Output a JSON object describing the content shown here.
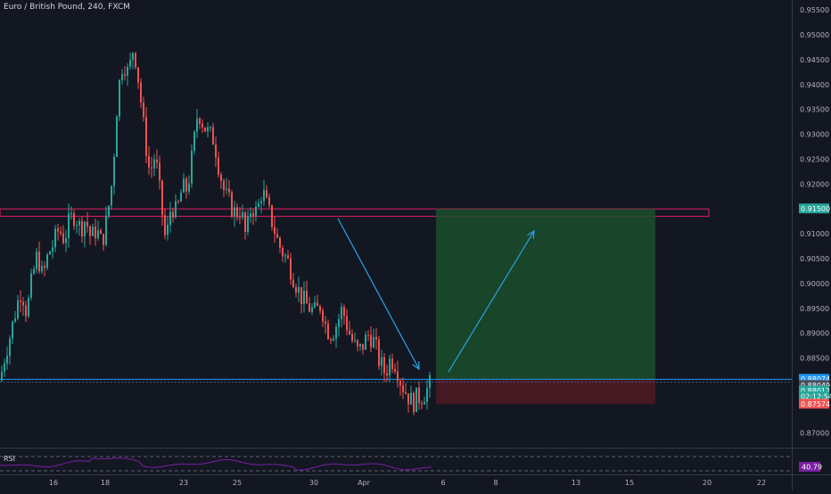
{
  "header": {
    "title": "Euro / British Pound, 240, FXCM"
  },
  "rsi": {
    "label": "RSI",
    "value": "40.79"
  },
  "colors": {
    "background": "#131722",
    "bull": "#26a69a",
    "bear": "#ef5350",
    "zone_outline": "#e91e63",
    "target_zone": "#1b4d2b",
    "stop_zone": "#4a1a22",
    "arrow": "#2196f3",
    "rsi_line": "#7b1fa2",
    "axis_text": "#b2b5be"
  },
  "price_axis": {
    "ticks": [
      "0.95500",
      "0.95000",
      "0.94500",
      "0.94000",
      "0.93500",
      "0.93000",
      "0.92500",
      "0.92000",
      "0.91000",
      "0.90500",
      "0.90000",
      "0.89500",
      "0.89000",
      "0.88500",
      "0.87000"
    ],
    "badges": [
      {
        "label": "0.91500",
        "bg": "#26a69a",
        "fg": "#ffffff",
        "price": 0.915
      },
      {
        "label": "0.88074",
        "bg": "#2196f3",
        "fg": "#ffffff",
        "price": 0.88074
      },
      {
        "label": "0.88049",
        "bg": "#4a4f5c",
        "fg": "#ffffff",
        "price": 0.8795
      },
      {
        "label": "0.88012",
        "bg": "#26a69a",
        "fg": "#ffffff",
        "price": 0.8784
      },
      {
        "label": "02:12:54",
        "bg": "#26a69a",
        "fg": "#ffffff",
        "price": 0.8772
      },
      {
        "label": "0.87574",
        "bg": "#ef5350",
        "fg": "#ffffff",
        "price": 0.87574
      }
    ]
  },
  "time_axis": {
    "labels": [
      "16",
      "18",
      "23",
      "25",
      "30",
      "Apr",
      "6",
      "8",
      "13",
      "15",
      "20",
      "22"
    ]
  },
  "chart_data": {
    "type": "candlestick",
    "title": "Euro / British Pound, 240, FXCM",
    "ylim": [
      0.867,
      0.957
    ],
    "resistance_zone": [
      0.9135,
      0.915
    ],
    "support_line": 0.88074,
    "long_position": {
      "entry": 0.88074,
      "target": 0.915,
      "stop": 0.87574
    },
    "price_path": [
      [
        0,
        0.8805
      ],
      [
        6,
        0.886
      ],
      [
        12,
        0.89
      ],
      [
        18,
        0.895
      ],
      [
        24,
        0.899
      ],
      [
        30,
        0.894
      ],
      [
        36,
        0.901
      ],
      [
        42,
        0.906
      ],
      [
        48,
        0.901
      ],
      [
        54,
        0.906
      ],
      [
        60,
        0.908
      ],
      [
        66,
        0.911
      ],
      [
        72,
        0.909
      ],
      [
        78,
        0.9125
      ],
      [
        84,
        0.914
      ],
      [
        90,
        0.911
      ],
      [
        96,
        0.913
      ],
      [
        102,
        0.909
      ],
      [
        108,
        0.911
      ],
      [
        114,
        0.908
      ],
      [
        120,
        0.913
      ],
      [
        126,
        0.921
      ],
      [
        132,
        0.938
      ],
      [
        138,
        0.945
      ],
      [
        144,
        0.942
      ],
      [
        150,
        0.948
      ],
      [
        156,
        0.94
      ],
      [
        162,
        0.93
      ],
      [
        168,
        0.922
      ],
      [
        174,
        0.926
      ],
      [
        180,
        0.917
      ],
      [
        186,
        0.908
      ],
      [
        192,
        0.916
      ],
      [
        198,
        0.914
      ],
      [
        204,
        0.919
      ],
      [
        210,
        0.919
      ],
      [
        216,
        0.926
      ],
      [
        222,
        0.935
      ],
      [
        228,
        0.932
      ],
      [
        234,
        0.93
      ],
      [
        240,
        0.929
      ],
      [
        246,
        0.923
      ],
      [
        252,
        0.918
      ],
      [
        258,
        0.916
      ],
      [
        264,
        0.914
      ],
      [
        270,
        0.915
      ],
      [
        276,
        0.909
      ],
      [
        282,
        0.916
      ],
      [
        288,
        0.914
      ],
      [
        294,
        0.919
      ],
      [
        300,
        0.915
      ],
      [
        306,
        0.912
      ],
      [
        312,
        0.908
      ],
      [
        318,
        0.906
      ],
      [
        324,
        0.904
      ],
      [
        330,
        0.901
      ],
      [
        336,
        0.898
      ],
      [
        342,
        0.896
      ],
      [
        348,
        0.895
      ],
      [
        354,
        0.894
      ],
      [
        360,
        0.896
      ],
      [
        366,
        0.891
      ],
      [
        372,
        0.89
      ],
      [
        378,
        0.892
      ],
      [
        384,
        0.895
      ],
      [
        390,
        0.891
      ],
      [
        396,
        0.888
      ],
      [
        402,
        0.886
      ],
      [
        408,
        0.888
      ],
      [
        414,
        0.89
      ],
      [
        420,
        0.888
      ],
      [
        426,
        0.884
      ],
      [
        432,
        0.882
      ],
      [
        438,
        0.885
      ],
      [
        444,
        0.884
      ],
      [
        450,
        0.88
      ],
      [
        456,
        0.878
      ],
      [
        462,
        0.876
      ],
      [
        468,
        0.877
      ],
      [
        474,
        0.8775
      ],
      [
        480,
        0.879
      ],
      [
        486,
        0.8807
      ]
    ]
  }
}
